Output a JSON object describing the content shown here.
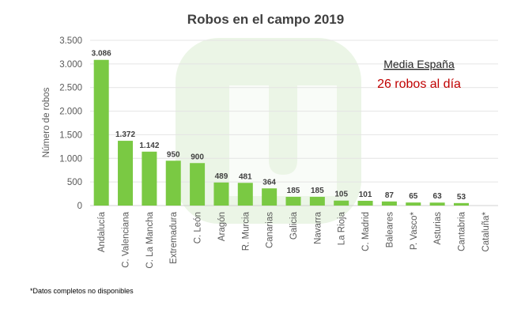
{
  "chart_data": {
    "type": "bar",
    "title": "Robos en el campo 2019",
    "xlabel": "",
    "ylabel": "Número de robos",
    "ylim": [
      0,
      3500
    ],
    "yticks": [
      0,
      500,
      1000,
      1500,
      2000,
      2500,
      3000,
      3500
    ],
    "ytick_labels": [
      "0",
      "500",
      "1.000",
      "1.500",
      "2.000",
      "2.500",
      "3.000",
      "3.500"
    ],
    "grid": true,
    "categories": [
      "Andalucía",
      "C. Valenciana",
      "C. La Mancha",
      "Extremadura",
      "C. León",
      "Aragón",
      "R. Murcia",
      "Canarias",
      "Galicia",
      "Navarra",
      "La Rioja",
      "C. Madrid",
      "Baleares",
      "P. Vasco*",
      "Asturias",
      "Cantabria",
      "Cataluña*"
    ],
    "values": [
      3086,
      1372,
      1142,
      950,
      900,
      489,
      481,
      364,
      185,
      185,
      105,
      101,
      87,
      65,
      63,
      53,
      null
    ],
    "data_labels": [
      "3.086",
      "1.372",
      "1.142",
      "950",
      "900",
      "489",
      "481",
      "364",
      "185",
      "185",
      "105",
      "101",
      "87",
      "65",
      "63",
      "53",
      ""
    ],
    "bar_color": "#7ac943",
    "annotation": {
      "heading": "Media España",
      "text": "26 robos al día",
      "text_color": "#c00000"
    },
    "footnote": "*Datos completos no disponibles"
  }
}
